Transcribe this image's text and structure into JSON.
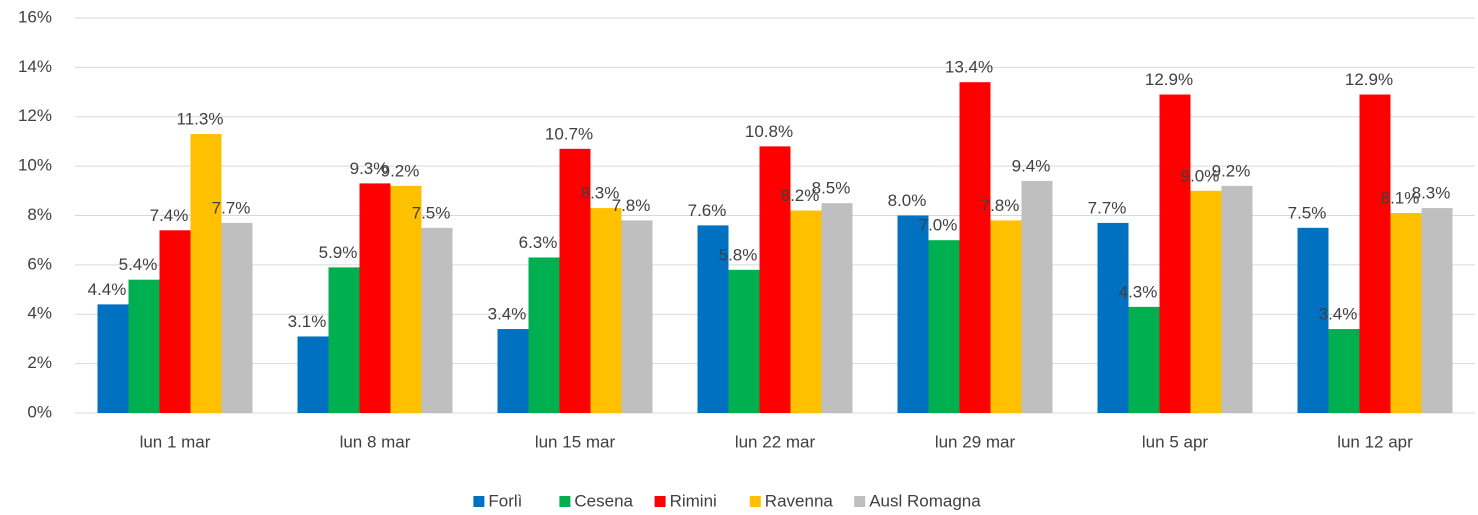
{
  "chart_data": {
    "type": "bar",
    "categories": [
      "lun 1 mar",
      "lun 8 mar",
      "lun 15 mar",
      "lun 22 mar",
      "lun 29 mar",
      "lun 5 apr",
      "lun 12 apr"
    ],
    "series": [
      {
        "name": "Forlì",
        "color": "#0070c0",
        "values": [
          4.4,
          3.1,
          3.4,
          7.6,
          8.0,
          7.7,
          7.5
        ],
        "value_labels": [
          "4.4%",
          "3.1%",
          "3.4%",
          "7.6%",
          "8.0%",
          "7.7%",
          "7.5%"
        ]
      },
      {
        "name": "Cesena",
        "color": "#00b050",
        "values": [
          5.4,
          5.9,
          6.3,
          5.8,
          7.0,
          4.3,
          3.4
        ],
        "value_labels": [
          "5.4%",
          "5.9%",
          "6.3%",
          "5.8%",
          "7.0%",
          "4.3%",
          "3.4%"
        ]
      },
      {
        "name": "Rimini",
        "color": "#ff0000",
        "values": [
          7.4,
          9.3,
          10.7,
          10.8,
          13.4,
          12.9,
          12.9
        ],
        "value_labels": [
          "7.4%",
          "9.3%",
          "10.7%",
          "10.8%",
          "13.4%",
          "12.9%",
          "12.9%"
        ]
      },
      {
        "name": "Ravenna",
        "color": "#ffc000",
        "values": [
          11.3,
          9.2,
          8.3,
          8.2,
          7.8,
          9.0,
          8.1
        ],
        "value_labels": [
          "11.3%",
          "9.2%",
          "8.3%",
          "8.2%",
          "7.8%",
          "9.0%",
          "8.1%"
        ]
      },
      {
        "name": "Ausl Romagna",
        "color": "#bfbfbf",
        "values": [
          7.7,
          7.5,
          7.8,
          8.5,
          9.4,
          9.2,
          8.3
        ],
        "value_labels": [
          "7.7%",
          "7.5%",
          "7.8%",
          "8.5%",
          "9.4%",
          "9.2%",
          "8.3%"
        ]
      }
    ],
    "ylim": [
      0,
      16
    ],
    "yticks": [
      {
        "value": 0,
        "label": "0%"
      },
      {
        "value": 2,
        "label": "2%"
      },
      {
        "value": 4,
        "label": "4%"
      },
      {
        "value": 6,
        "label": "6%"
      },
      {
        "value": 8,
        "label": "8%"
      },
      {
        "value": 10,
        "label": "10%"
      },
      {
        "value": 12,
        "label": "12%"
      },
      {
        "value": 14,
        "label": "14%"
      },
      {
        "value": 16,
        "label": "16%"
      }
    ],
    "grid": true,
    "legend": "bottom"
  }
}
